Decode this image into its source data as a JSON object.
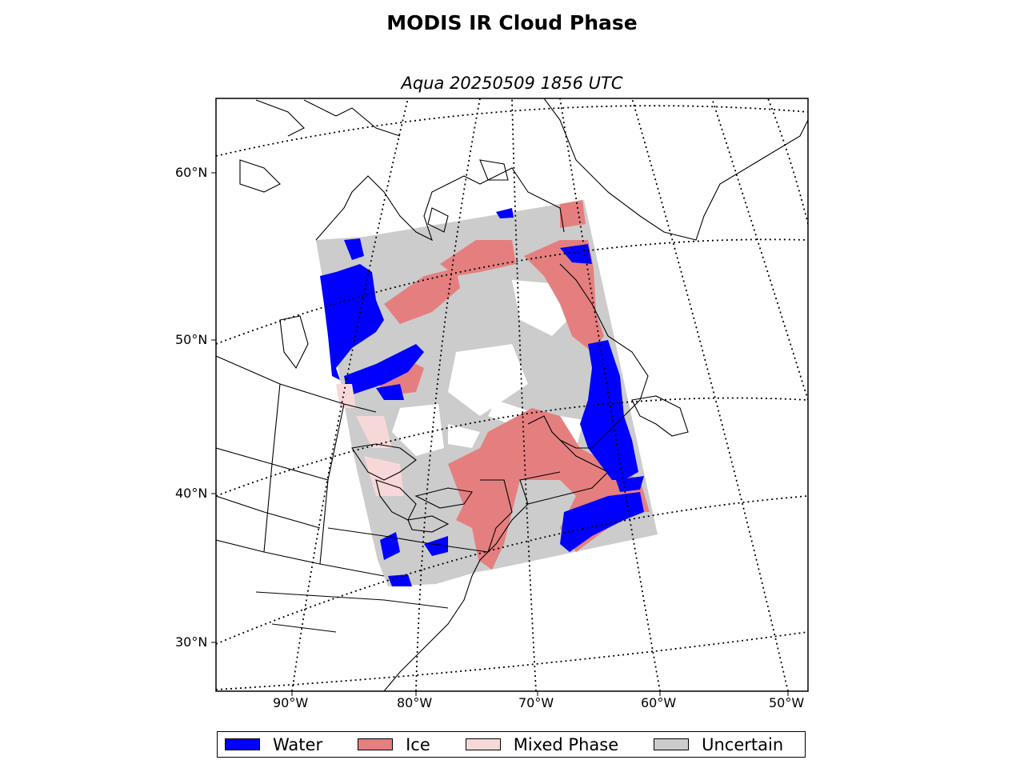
{
  "title": "MODIS IR Cloud Phase",
  "subtitle": "Aqua 20250509 1856 UTC",
  "lat_labels": [
    "60°N",
    "50°N",
    "40°N",
    "30°N"
  ],
  "lon_labels": [
    "90°W",
    "80°W",
    "70°W",
    "60°W",
    "50°W"
  ],
  "legend": [
    {
      "label": "Water",
      "color": "#0000ff"
    },
    {
      "label": "Ice",
      "color": "#e57f7f"
    },
    {
      "label": "Mixed Phase",
      "color": "#f7d8d8"
    },
    {
      "label": "Uncertain",
      "color": "#cccccc"
    }
  ],
  "colors": {
    "water": "#0000ff",
    "ice": "#e57f7f",
    "mixed": "#f7d8d8",
    "uncertain": "#cccccc",
    "clear": "#ffffff"
  }
}
